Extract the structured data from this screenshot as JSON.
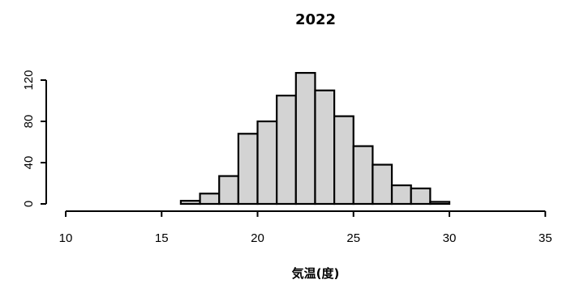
{
  "chart_data": {
    "type": "bar",
    "title": "2022",
    "xlabel": "気温(度)",
    "ylabel": "",
    "bin_width": 1,
    "x_ticks": [
      10,
      15,
      20,
      25,
      30,
      35
    ],
    "y_ticks": [
      0,
      40,
      80,
      120
    ],
    "xlim": [
      10,
      36
    ],
    "ylim": [
      0,
      128
    ],
    "bins": [
      {
        "start": 10,
        "end": 11,
        "count": 0
      },
      {
        "start": 11,
        "end": 12,
        "count": 0
      },
      {
        "start": 12,
        "end": 13,
        "count": 0
      },
      {
        "start": 13,
        "end": 14,
        "count": 0
      },
      {
        "start": 14,
        "end": 15,
        "count": 0
      },
      {
        "start": 15,
        "end": 16,
        "count": 0
      },
      {
        "start": 16,
        "end": 17,
        "count": 3
      },
      {
        "start": 17,
        "end": 18,
        "count": 10
      },
      {
        "start": 18,
        "end": 19,
        "count": 27
      },
      {
        "start": 19,
        "end": 20,
        "count": 68
      },
      {
        "start": 20,
        "end": 21,
        "count": 80
      },
      {
        "start": 21,
        "end": 22,
        "count": 105
      },
      {
        "start": 22,
        "end": 23,
        "count": 127
      },
      {
        "start": 23,
        "end": 24,
        "count": 110
      },
      {
        "start": 24,
        "end": 25,
        "count": 85
      },
      {
        "start": 25,
        "end": 26,
        "count": 56
      },
      {
        "start": 26,
        "end": 27,
        "count": 38
      },
      {
        "start": 27,
        "end": 28,
        "count": 18
      },
      {
        "start": 28,
        "end": 29,
        "count": 15
      },
      {
        "start": 29,
        "end": 30,
        "count": 2
      },
      {
        "start": 30,
        "end": 31,
        "count": 0
      },
      {
        "start": 31,
        "end": 32,
        "count": 0
      },
      {
        "start": 32,
        "end": 33,
        "count": 0
      },
      {
        "start": 33,
        "end": 34,
        "count": 0
      },
      {
        "start": 34,
        "end": 35,
        "count": 0
      },
      {
        "start": 35,
        "end": 36,
        "count": 0
      }
    ],
    "grid": false,
    "legend": "none"
  }
}
